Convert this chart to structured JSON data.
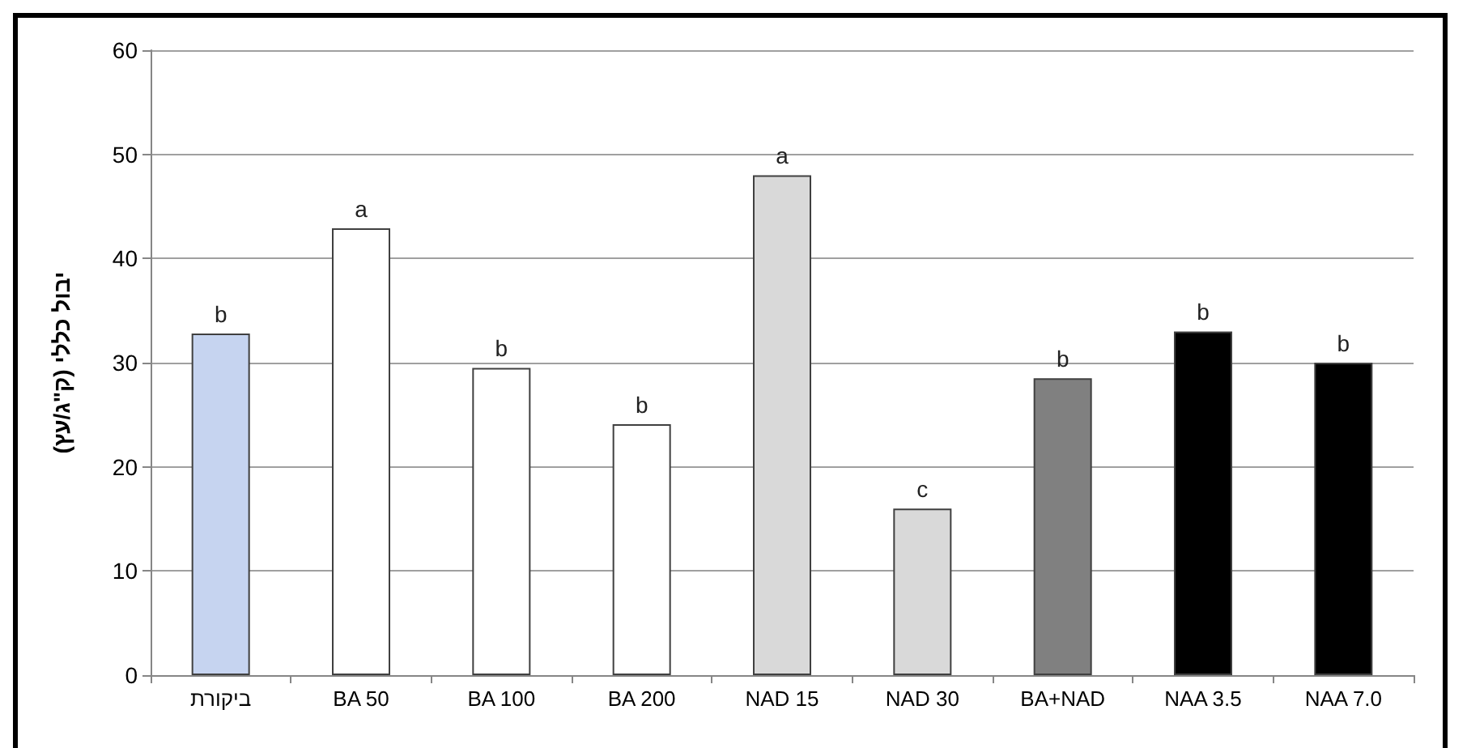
{
  "chart_data": {
    "type": "bar",
    "ylabel": "יבול כללי (ק\"ג/עץ)",
    "categories": [
      "ביקורת",
      "BA 50",
      "BA 100",
      "BA 200",
      "NAD 15",
      "NAD 30",
      "BA+NAD",
      "NAA 3.5",
      "NAA 7.0"
    ],
    "values": [
      32.8,
      42.9,
      29.5,
      24.1,
      48.0,
      16.0,
      28.5,
      33.0,
      30.0
    ],
    "colors": [
      "#c6d4f0",
      "#ffffff",
      "#ffffff",
      "#ffffff",
      "#d9d9d9",
      "#d9d9d9",
      "#808080",
      "#000000",
      "#000000"
    ],
    "value_labels": [
      "b",
      "a",
      "b",
      "b",
      "a",
      "c",
      "b",
      "b",
      "b"
    ],
    "ylim": [
      0,
      60
    ],
    "yticks": [
      0,
      10,
      20,
      30,
      40,
      50,
      60
    ],
    "grid": "y"
  }
}
